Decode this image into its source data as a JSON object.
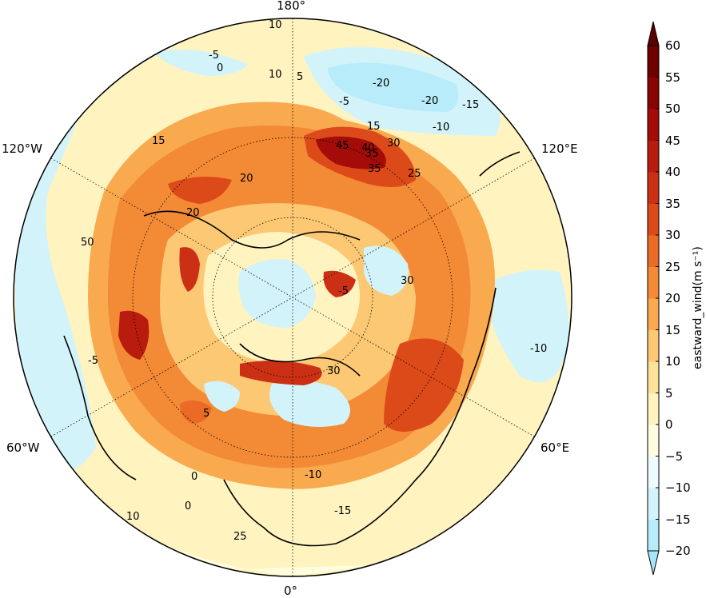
{
  "map": {
    "projection": "north-polar-stereographic",
    "longitude_labels": [
      {
        "id": "lon-180",
        "text": "180°"
      },
      {
        "id": "lon-120w",
        "text": "120°W"
      },
      {
        "id": "lon-120e",
        "text": "120°E"
      },
      {
        "id": "lon-60w",
        "text": "60°W"
      },
      {
        "id": "lon-60e",
        "text": "60°E"
      },
      {
        "id": "lon-0",
        "text": "0°"
      }
    ],
    "contour_labels": [
      "-20",
      "-20",
      "-15",
      "-10",
      "-5",
      "-5",
      "0",
      "5",
      "10",
      "10",
      "15",
      "20",
      "25",
      "30",
      "35",
      "40",
      "45",
      "50",
      "-5",
      "-10",
      "-15",
      "-10",
      "0",
      "25",
      "10",
      "5",
      "0",
      "30",
      "-5",
      "15",
      "20",
      "30",
      "35"
    ],
    "colors": {
      "coastline": "#000000",
      "graticule": "#000000"
    }
  },
  "colorbar": {
    "label": "eastward_wind",
    "unit": "(m s⁻¹)",
    "ticks": [
      "60",
      "55",
      "50",
      "45",
      "40",
      "35",
      "30",
      "25",
      "20",
      "15",
      "10",
      "5",
      "0",
      "−5",
      "−10",
      "−15",
      "−20"
    ],
    "levels": [
      -20,
      -15,
      -10,
      -5,
      0,
      5,
      10,
      15,
      20,
      25,
      30,
      35,
      40,
      45,
      50,
      55,
      60
    ],
    "colors": [
      "#b8ecfa",
      "#d3f3fb",
      "#eefbfe",
      "#fffde0",
      "#fff3c0",
      "#fde39a",
      "#fcc873",
      "#f9a94e",
      "#f38a36",
      "#ea6a26",
      "#dd4a1a",
      "#cc3014",
      "#b91c0e",
      "#a30c08",
      "#8b0404",
      "#700000"
    ],
    "extend_low_color": "#a6e6f8",
    "extend_high_color": "#5a0000"
  }
}
